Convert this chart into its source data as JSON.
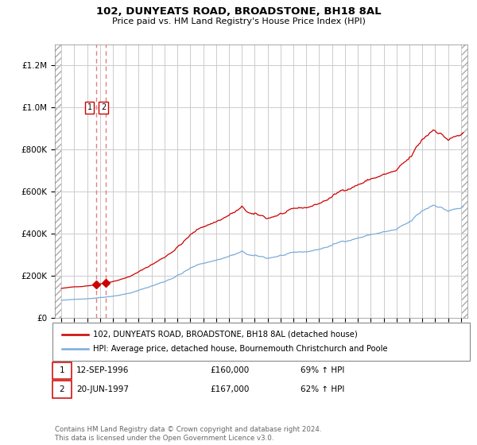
{
  "title": "102, DUNYEATS ROAD, BROADSTONE, BH18 8AL",
  "subtitle": "Price paid vs. HM Land Registry's House Price Index (HPI)",
  "legend_line1": "102, DUNYEATS ROAD, BROADSTONE, BH18 8AL (detached house)",
  "legend_line2": "HPI: Average price, detached house, Bournemouth Christchurch and Poole",
  "transaction1_date": "12-SEP-1996",
  "transaction1_price": 160000,
  "transaction1_label": "69% ↑ HPI",
  "transaction2_date": "20-JUN-1997",
  "transaction2_price": 167000,
  "transaction2_label": "62% ↑ HPI",
  "transaction1_x": 1996.71,
  "transaction2_x": 1997.46,
  "footer": "Contains HM Land Registry data © Crown copyright and database right 2024.\nThis data is licensed under the Open Government Licence v3.0.",
  "ylim": [
    0,
    1300000
  ],
  "xlim_start": 1993.5,
  "xlim_end": 2025.5,
  "red_line_color": "#cc0000",
  "blue_line_color": "#7aacda",
  "dashed_vline_color": "#e08080",
  "transaction_marker_color": "#cc0000",
  "box_border_color": "#cc0000",
  "background_color": "#ffffff",
  "grid_color": "#cccccc",
  "hatch_color": "#aaaaaa"
}
